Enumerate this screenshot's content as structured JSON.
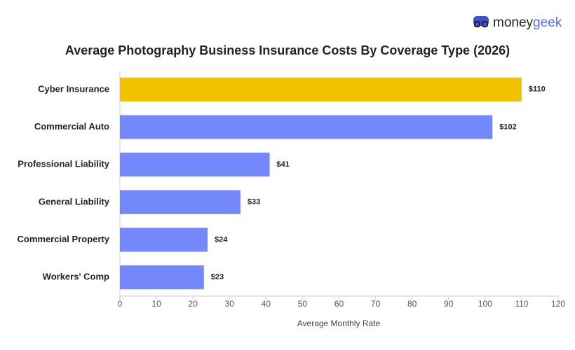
{
  "logo": {
    "part1": "money",
    "part2": "geek"
  },
  "chart_data": {
    "type": "hbar",
    "title": "Average Photography Business Insurance Costs By Coverage Type (2026)",
    "categories": [
      "Cyber Insurance",
      "Commercial Auto",
      "Professional Liability",
      "General Liability",
      "Commercial Property",
      "Workers' Comp"
    ],
    "values": [
      110,
      102,
      41,
      33,
      24,
      23
    ],
    "value_labels": [
      "$110",
      "$102",
      "$41",
      "$33",
      "$24",
      "$23"
    ],
    "colors": [
      "#f2c200",
      "#7388fb",
      "#7388fb",
      "#7388fb",
      "#7388fb",
      "#7388fb"
    ],
    "x_label": "Average Monthly Rate",
    "xlim": [
      0,
      120
    ],
    "xticks": [
      0,
      10,
      20,
      30,
      40,
      50,
      60,
      70,
      80,
      90,
      100,
      110,
      120
    ],
    "grid": false
  }
}
